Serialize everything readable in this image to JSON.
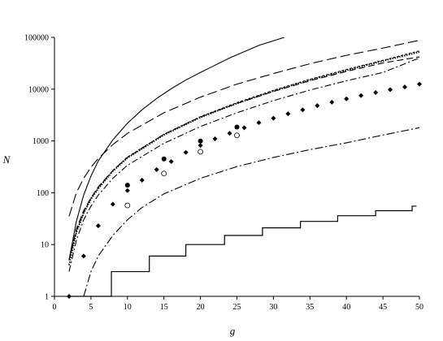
{
  "chart_data": {
    "type": "line",
    "title": "",
    "xlabel": "g",
    "ylabel": "N",
    "xlim": [
      0,
      50
    ],
    "ylim_log10": [
      0,
      5
    ],
    "y_scale": "log",
    "grid": false,
    "legend": "none",
    "x_ticks": [
      0,
      5,
      10,
      15,
      20,
      25,
      30,
      35,
      40,
      45,
      50
    ],
    "x_tick_labels": [
      "0",
      "5",
      "10",
      "15",
      "20",
      "25",
      "30",
      "35",
      "40",
      "45",
      "50"
    ],
    "y_ticks": [
      1,
      10,
      100,
      1000,
      10000,
      100000
    ],
    "y_tick_labels": [
      "1",
      "10",
      "100",
      "1000",
      "10000",
      "100000"
    ],
    "curves": [
      {
        "style": "solid",
        "points": [
          [
            2,
            5
          ],
          [
            3,
            28
          ],
          [
            4,
            90
          ],
          [
            5,
            210
          ],
          [
            6,
            410
          ],
          [
            8,
            1050
          ],
          [
            10,
            2200
          ],
          [
            12,
            4000
          ],
          [
            14,
            6600
          ],
          [
            16,
            10200
          ],
          [
            18,
            15000
          ],
          [
            20,
            21000
          ],
          [
            24,
            40000
          ],
          [
            28,
            70000
          ],
          [
            31.5,
            100000
          ]
        ]
      },
      {
        "style": "long-dash",
        "points": [
          [
            2,
            35
          ],
          [
            3,
            100
          ],
          [
            4,
            190
          ],
          [
            5,
            310
          ],
          [
            6,
            460
          ],
          [
            8,
            850
          ],
          [
            10,
            1400
          ],
          [
            15,
            3500
          ],
          [
            20,
            7000
          ],
          [
            25,
            12500
          ],
          [
            30,
            20000
          ],
          [
            35,
            31000
          ],
          [
            40,
            45000
          ],
          [
            45,
            62000
          ],
          [
            50,
            88000
          ]
        ]
      },
      {
        "style": "medium-dash",
        "points": [
          [
            2,
            5
          ],
          [
            3,
            20
          ],
          [
            4,
            45
          ],
          [
            5,
            80
          ],
          [
            6,
            130
          ],
          [
            8,
            270
          ],
          [
            10,
            480
          ],
          [
            15,
            1350
          ],
          [
            20,
            2900
          ],
          [
            25,
            5300
          ],
          [
            30,
            9000
          ],
          [
            35,
            14500
          ],
          [
            40,
            22000
          ],
          [
            45,
            32000
          ],
          [
            50,
            42000
          ]
        ]
      },
      {
        "style": "dense-dot",
        "points": [
          [
            2,
            4
          ],
          [
            3,
            17
          ],
          [
            4,
            40
          ],
          [
            5,
            75
          ],
          [
            6,
            120
          ],
          [
            8,
            260
          ],
          [
            10,
            470
          ],
          [
            15,
            1300
          ],
          [
            20,
            2850
          ],
          [
            25,
            5300
          ],
          [
            30,
            9200
          ],
          [
            35,
            15000
          ],
          [
            40,
            23000
          ],
          [
            45,
            35000
          ],
          [
            50,
            52000
          ]
        ]
      },
      {
        "style": "fine-dash",
        "points": [
          [
            2,
            5
          ],
          [
            3,
            18
          ],
          [
            4,
            42
          ],
          [
            5,
            78
          ],
          [
            6,
            125
          ],
          [
            8,
            270
          ],
          [
            10,
            490
          ],
          [
            15,
            1350
          ],
          [
            20,
            2950
          ],
          [
            25,
            5500
          ],
          [
            30,
            9500
          ],
          [
            35,
            15500
          ],
          [
            40,
            24000
          ],
          [
            45,
            36000
          ],
          [
            50,
            55000
          ]
        ]
      },
      {
        "style": "dash-dot",
        "points": [
          [
            2,
            3
          ],
          [
            3,
            12
          ],
          [
            4,
            30
          ],
          [
            5,
            55
          ],
          [
            6,
            90
          ],
          [
            8,
            190
          ],
          [
            10,
            340
          ],
          [
            15,
            900
          ],
          [
            20,
            1900
          ],
          [
            25,
            3500
          ],
          [
            30,
            6000
          ],
          [
            35,
            9600
          ],
          [
            40,
            14500
          ],
          [
            45,
            21000
          ],
          [
            50,
            40000
          ]
        ]
      },
      {
        "style": "dash-dot-long",
        "points": [
          [
            4,
            1
          ],
          [
            5,
            3
          ],
          [
            6,
            6
          ],
          [
            8,
            15
          ],
          [
            10,
            30
          ],
          [
            12,
            52
          ],
          [
            15,
            95
          ],
          [
            20,
            190
          ],
          [
            25,
            320
          ],
          [
            30,
            480
          ],
          [
            35,
            680
          ],
          [
            40,
            920
          ],
          [
            45,
            1300
          ],
          [
            50,
            1800
          ]
        ]
      }
    ],
    "step_line": {
      "style": "solid",
      "points": [
        [
          2,
          1
        ],
        [
          7.8,
          1
        ],
        [
          7.8,
          3
        ],
        [
          13,
          3
        ],
        [
          13,
          6
        ],
        [
          18,
          6
        ],
        [
          18,
          10
        ],
        [
          23.3,
          10
        ],
        [
          23.3,
          15
        ],
        [
          28.5,
          15
        ],
        [
          28.5,
          21
        ],
        [
          33.7,
          21
        ],
        [
          33.7,
          28
        ],
        [
          38.8,
          28
        ],
        [
          38.8,
          36
        ],
        [
          44,
          36
        ],
        [
          44,
          45
        ],
        [
          49,
          45
        ],
        [
          49,
          55
        ],
        [
          49.6,
          55
        ]
      ]
    },
    "diamond_markers": [
      [
        2,
        1
      ],
      [
        4,
        6
      ],
      [
        6,
        23
      ],
      [
        8,
        60
      ],
      [
        10,
        110
      ],
      [
        12,
        175
      ],
      [
        14,
        280
      ],
      [
        16,
        400
      ],
      [
        18,
        600
      ],
      [
        20,
        820
      ],
      [
        22,
        1100
      ],
      [
        24,
        1400
      ],
      [
        26,
        1800
      ],
      [
        28,
        2250
      ],
      [
        30,
        2750
      ],
      [
        32,
        3350
      ],
      [
        34,
        4000
      ],
      [
        36,
        4800
      ],
      [
        38,
        5600
      ],
      [
        40,
        6500
      ],
      [
        42,
        7500
      ],
      [
        44,
        8600
      ],
      [
        46,
        9800
      ],
      [
        48,
        11000
      ],
      [
        50,
        12500
      ]
    ],
    "filled_circle_markers": [
      [
        10,
        140
      ],
      [
        15,
        450
      ],
      [
        20,
        1000
      ],
      [
        25,
        1850
      ]
    ],
    "open_circle_markers": [
      [
        10,
        57
      ],
      [
        15,
        235
      ],
      [
        20,
        620
      ],
      [
        25,
        1280
      ]
    ]
  }
}
